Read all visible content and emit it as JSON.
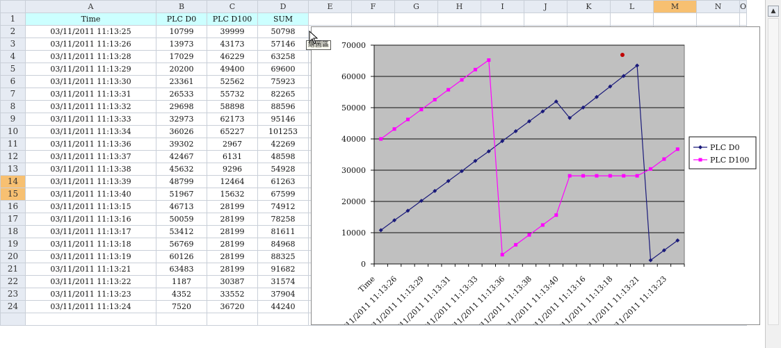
{
  "sheet": {
    "columns": [
      "A",
      "B",
      "C",
      "D",
      "E",
      "F",
      "G",
      "H",
      "I",
      "J",
      "K",
      "L",
      "M",
      "N",
      "O"
    ],
    "active_column": "M",
    "active_rows": [
      "14",
      "15"
    ],
    "header_row": {
      "row": "1",
      "cells": [
        "Time",
        "PLC D0",
        "PLC D100",
        "SUM"
      ]
    },
    "rows": [
      {
        "row": "2",
        "cells": [
          "03/11/2011 11:13:25",
          "10799",
          "39999",
          "50798"
        ]
      },
      {
        "row": "3",
        "cells": [
          "03/11/2011 11:13:26",
          "13973",
          "43173",
          "57146"
        ]
      },
      {
        "row": "4",
        "cells": [
          "03/11/2011 11:13:28",
          "17029",
          "46229",
          "63258"
        ]
      },
      {
        "row": "5",
        "cells": [
          "03/11/2011 11:13:29",
          "20200",
          "49400",
          "69600"
        ]
      },
      {
        "row": "6",
        "cells": [
          "03/11/2011 11:13:30",
          "23361",
          "52562",
          "75923"
        ]
      },
      {
        "row": "7",
        "cells": [
          "03/11/2011 11:13:31",
          "26533",
          "55732",
          "82265"
        ]
      },
      {
        "row": "8",
        "cells": [
          "03/11/2011 11:13:32",
          "29698",
          "58898",
          "88596"
        ]
      },
      {
        "row": "9",
        "cells": [
          "03/11/2011 11:13:33",
          "32973",
          "62173",
          "95146"
        ]
      },
      {
        "row": "10",
        "cells": [
          "03/11/2011 11:13:34",
          "36026",
          "65227",
          "101253"
        ]
      },
      {
        "row": "11",
        "cells": [
          "03/11/2011 11:13:36",
          "39302",
          "2967",
          "42269"
        ]
      },
      {
        "row": "12",
        "cells": [
          "03/11/2011 11:13:37",
          "42467",
          "6131",
          "48598"
        ]
      },
      {
        "row": "13",
        "cells": [
          "03/11/2011 11:13:38",
          "45632",
          "9296",
          "54928"
        ]
      },
      {
        "row": "14",
        "cells": [
          "03/11/2011 11:13:39",
          "48799",
          "12464",
          "61263"
        ]
      },
      {
        "row": "15",
        "cells": [
          "03/11/2011 11:13:40",
          "51967",
          "15632",
          "67599"
        ]
      },
      {
        "row": "16",
        "cells": [
          "03/11/2011 11:13:15",
          "46713",
          "28199",
          "74912"
        ]
      },
      {
        "row": "17",
        "cells": [
          "03/11/2011 11:13:16",
          "50059",
          "28199",
          "78258"
        ]
      },
      {
        "row": "18",
        "cells": [
          "03/11/2011 11:13:17",
          "53412",
          "28199",
          "81611"
        ]
      },
      {
        "row": "19",
        "cells": [
          "03/11/2011 11:13:18",
          "56769",
          "28199",
          "84968"
        ]
      },
      {
        "row": "20",
        "cells": [
          "03/11/2011 11:13:19",
          "60126",
          "28199",
          "88325"
        ]
      },
      {
        "row": "21",
        "cells": [
          "03/11/2011 11:13:21",
          "63483",
          "28199",
          "91682"
        ]
      },
      {
        "row": "22",
        "cells": [
          "03/11/2011 11:13:22",
          "1187",
          "30387",
          "31574"
        ]
      },
      {
        "row": "23",
        "cells": [
          "03/11/2011 11:13:23",
          "4352",
          "33552",
          "37904"
        ]
      },
      {
        "row": "24",
        "cells": [
          "03/11/2011 11:13:24",
          "7520",
          "36720",
          "44240"
        ]
      }
    ]
  },
  "tooltip": {
    "label": "繪圖區"
  },
  "scrollbar": {
    "up_icon": "up-arrow-icon"
  },
  "colors": {
    "series_d0": "#1a1a7a",
    "series_d100": "#ff00ff",
    "plot_bg": "#c0c0c0",
    "header_cell_bg": "#ccffff",
    "active_header_bg": "#f7c071"
  },
  "chart_data": {
    "type": "line",
    "x_title": "Time",
    "categories": [
      "03/11/2011 11:13:25",
      "03/11/2011 11:13:26",
      "03/11/2011 11:13:28",
      "03/11/2011 11:13:29",
      "03/11/2011 11:13:30",
      "03/11/2011 11:13:31",
      "03/11/2011 11:13:32",
      "03/11/2011 11:13:33",
      "03/11/2011 11:13:34",
      "03/11/2011 11:13:36",
      "03/11/2011 11:13:37",
      "03/11/2011 11:13:38",
      "03/11/2011 11:13:39",
      "03/11/2011 11:13:40",
      "03/11/2011 11:13:15",
      "03/11/2011 11:13:16",
      "03/11/2011 11:13:17",
      "03/11/2011 11:13:18",
      "03/11/2011 11:13:19",
      "03/11/2011 11:13:21",
      "03/11/2011 11:13:22",
      "03/11/2011 11:13:23",
      "03/11/2011 11:13:24"
    ],
    "visible_tick_labels": [
      "03/11/2011 11:13:26",
      "03/11/2011 11:13:29",
      "03/11/2011 11:13:31",
      "03/11/2011 11:13:33",
      "03/11/2011 11:13:36",
      "03/11/2011 11:13:38",
      "03/11/2011 11:13:40",
      "03/11/2011 11:13:16",
      "03/11/2011 11:13:18",
      "03/11/2011 11:13:21",
      "03/11/2011 11:13:23"
    ],
    "ylim": [
      0,
      70000
    ],
    "yticks": [
      0,
      10000,
      20000,
      30000,
      40000,
      50000,
      60000,
      70000
    ],
    "grid": true,
    "legend_position": "right",
    "series": [
      {
        "name": "PLC D0",
        "values": [
          10799,
          13973,
          17029,
          20200,
          23361,
          26533,
          29698,
          32973,
          36026,
          39302,
          42467,
          45632,
          48799,
          51967,
          46713,
          50059,
          53412,
          56769,
          60126,
          63483,
          1187,
          4352,
          7520
        ]
      },
      {
        "name": "PLC D100",
        "values": [
          39999,
          43173,
          46229,
          49400,
          52562,
          55732,
          58898,
          62173,
          65227,
          2967,
          6131,
          9296,
          12464,
          15632,
          28199,
          28199,
          28199,
          28199,
          28199,
          28199,
          30387,
          33552,
          36720
        ]
      }
    ]
  }
}
